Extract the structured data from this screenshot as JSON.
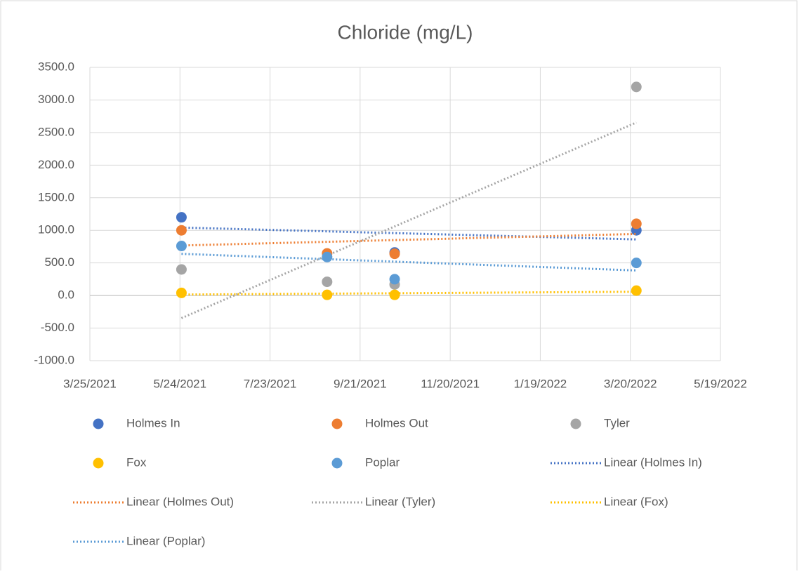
{
  "chart_data": {
    "type": "scatter",
    "title": "Chloride (mg/L)",
    "x": [
      "5/25/2021",
      "8/30/2021",
      "10/14/2021",
      "3/24/2022"
    ],
    "xlim": [
      "3/25/2021",
      "5/19/2022"
    ],
    "xticks": [
      "3/25/2021",
      "5/24/2021",
      "7/23/2021",
      "9/21/2021",
      "11/20/2021",
      "1/19/2022",
      "3/20/2022",
      "5/19/2022"
    ],
    "ylim": [
      -1000,
      3500
    ],
    "yticks": [
      {
        "value": -1000,
        "label": "-1000.0"
      },
      {
        "value": -500,
        "label": "-500.0"
      },
      {
        "value": 0,
        "label": "0.0"
      },
      {
        "value": 500,
        "label": "500.0"
      },
      {
        "value": 1000,
        "label": "1000.0"
      },
      {
        "value": 1500,
        "label": "1500.0"
      },
      {
        "value": 2000,
        "label": "2000.0"
      },
      {
        "value": 2500,
        "label": "2500.0"
      },
      {
        "value": 3000,
        "label": "3000.0"
      },
      {
        "value": 3500,
        "label": "3500.0"
      }
    ],
    "grid": true,
    "legend": "bottom",
    "series": [
      {
        "name": "Holmes In",
        "trendline_name": "Linear (Holmes In)",
        "color": "#4472c4",
        "values": [
          1200,
          null,
          660,
          1000
        ]
      },
      {
        "name": "Holmes Out",
        "trendline_name": "Linear (Holmes Out)",
        "color": "#ed7d31",
        "values": [
          1000,
          646,
          640,
          1100
        ]
      },
      {
        "name": "Tyler",
        "trendline_name": "Linear (Tyler)",
        "color": "#a5a5a5",
        "values": [
          400,
          210,
          170,
          3200
        ]
      },
      {
        "name": "Fox",
        "trendline_name": "Linear (Fox)",
        "color": "#ffc000",
        "values": [
          40,
          10,
          10,
          75
        ]
      },
      {
        "name": "Poplar",
        "trendline_name": "Linear (Poplar)",
        "color": "#5b9bd5",
        "values": [
          760,
          590,
          250,
          500
        ]
      }
    ]
  }
}
